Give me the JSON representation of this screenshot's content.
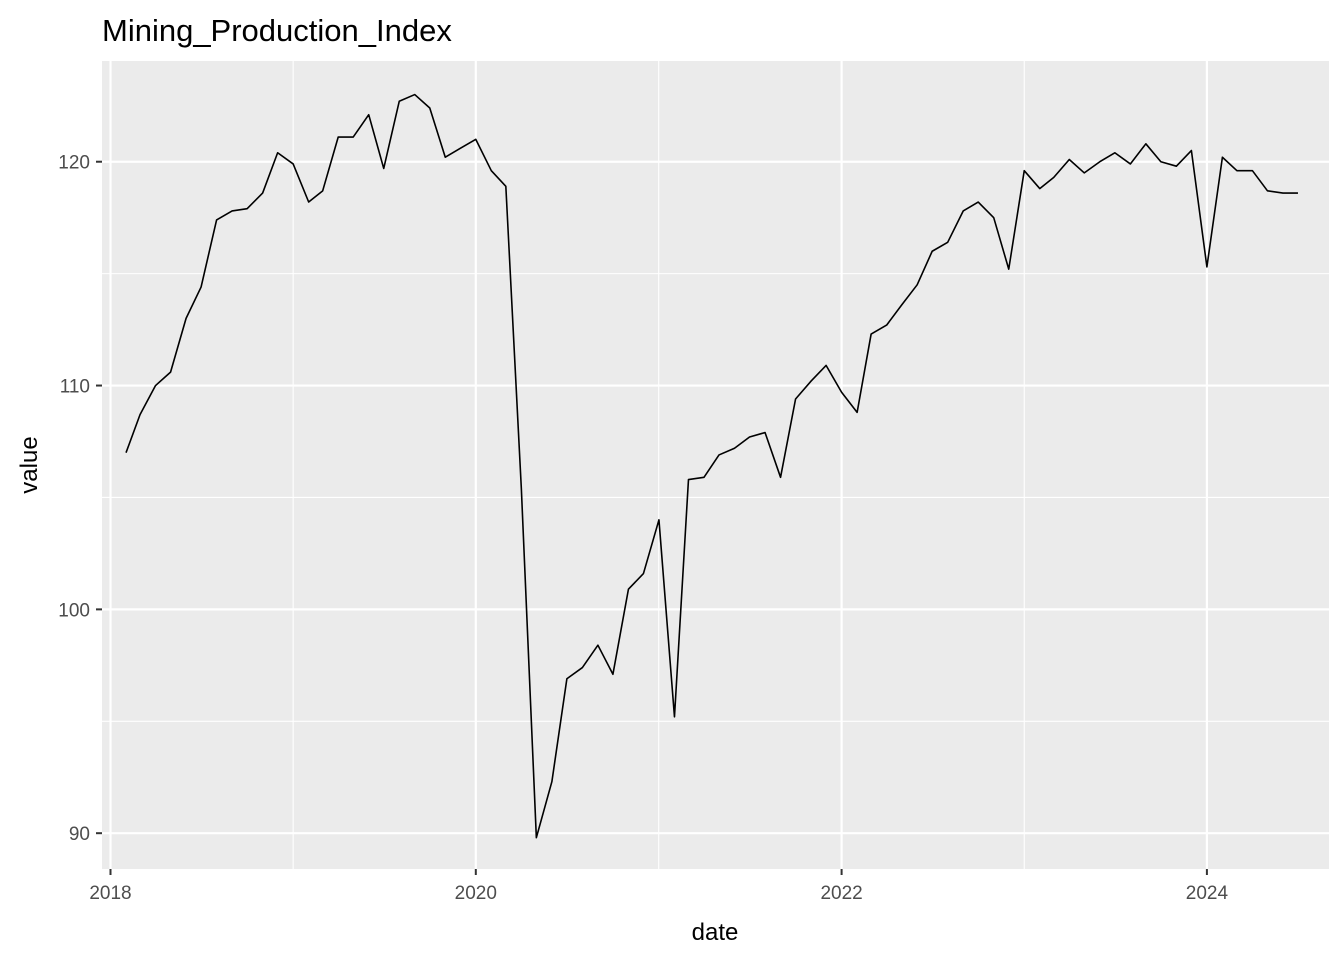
{
  "chart_data": {
    "type": "line",
    "title": "Mining_Production_Index",
    "xlabel": "date",
    "ylabel": "value",
    "xlim": [
      "2017-12-15",
      "2024-09-01"
    ],
    "ylim": [
      88.4,
      124.5
    ],
    "x_ticks": [
      "2018-01-01",
      "2020-01-01",
      "2022-01-01",
      "2024-01-01"
    ],
    "x_tick_labels": [
      "2018",
      "2020",
      "2022",
      "2024"
    ],
    "y_ticks": [
      90,
      100,
      110,
      120
    ],
    "y_tick_labels": [
      "90",
      "100",
      "110",
      "120"
    ],
    "grid": true,
    "panel_background": "#ebebeb",
    "grid_color": "#ffffff",
    "line_color": "#000000",
    "series": [
      {
        "x": [
          "2018-02",
          "2018-03",
          "2018-04",
          "2018-05",
          "2018-06",
          "2018-07",
          "2018-08",
          "2018-09",
          "2018-10",
          "2018-11",
          "2018-12",
          "2019-01",
          "2019-02",
          "2019-03",
          "2019-04",
          "2019-05",
          "2019-06",
          "2019-07",
          "2019-08",
          "2019-09",
          "2019-10",
          "2019-11",
          "2019-12",
          "2020-01",
          "2020-02",
          "2020-03",
          "2020-04",
          "2020-05",
          "2020-06",
          "2020-07",
          "2020-08",
          "2020-09",
          "2020-10",
          "2020-11",
          "2020-12",
          "2021-01",
          "2021-02",
          "2021-03",
          "2021-04",
          "2021-05",
          "2021-06",
          "2021-07",
          "2021-08",
          "2021-09",
          "2021-10",
          "2021-11",
          "2021-12",
          "2022-01",
          "2022-02",
          "2022-03",
          "2022-04",
          "2022-05",
          "2022-06",
          "2022-07",
          "2022-08",
          "2022-09",
          "2022-10",
          "2022-11",
          "2022-12",
          "2023-01",
          "2023-02",
          "2023-03",
          "2023-04",
          "2023-05",
          "2023-06",
          "2023-07",
          "2023-08",
          "2023-09",
          "2023-10",
          "2023-11",
          "2023-12",
          "2024-01",
          "2024-02",
          "2024-03",
          "2024-04",
          "2024-05",
          "2024-06",
          "2024-07"
        ],
        "values": [
          107.0,
          108.7,
          110.0,
          110.6,
          113.0,
          114.4,
          117.4,
          117.8,
          117.9,
          118.6,
          120.4,
          119.9,
          118.2,
          118.7,
          121.1,
          121.1,
          122.1,
          119.7,
          122.7,
          123.0,
          122.4,
          120.2,
          120.6,
          121.0,
          119.6,
          118.9,
          105.4,
          89.8,
          92.3,
          96.9,
          97.4,
          98.4,
          97.1,
          100.9,
          101.6,
          104.0,
          95.2,
          105.8,
          105.9,
          106.9,
          107.2,
          107.7,
          107.9,
          105.9,
          109.4,
          110.2,
          110.9,
          109.7,
          108.8,
          112.3,
          112.7,
          113.6,
          114.5,
          116.0,
          116.4,
          117.8,
          118.2,
          117.5,
          115.2,
          119.6,
          118.8,
          119.3,
          120.1,
          119.5,
          120.0,
          120.4,
          119.9,
          120.8,
          120.0,
          119.8,
          120.5,
          115.3,
          120.2,
          119.6,
          119.6,
          118.7,
          118.6,
          118.6
        ]
      }
    ]
  }
}
